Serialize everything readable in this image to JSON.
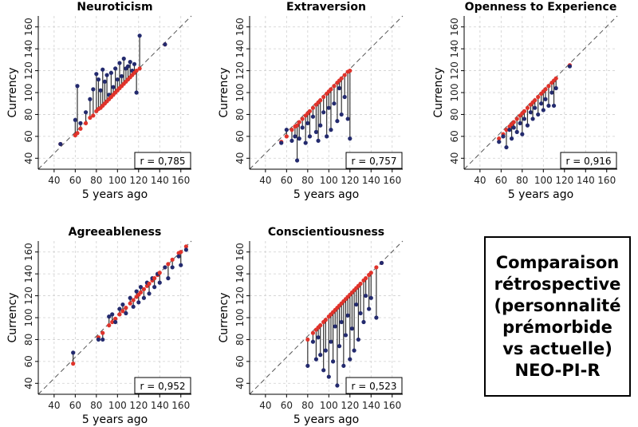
{
  "chart_data": [
    {
      "type": "scatter",
      "title": "Neuroticism",
      "xlabel": "5 years ago",
      "ylabel": "Currency",
      "xlim": [
        25,
        170
      ],
      "ylim": [
        30,
        170
      ],
      "xticks": [
        40,
        60,
        80,
        100,
        120,
        140,
        160
      ],
      "yticks": [
        40,
        60,
        80,
        100,
        120,
        140,
        160
      ],
      "grid": true,
      "annotation": "r = 0,785",
      "pairs": [
        [
          46,
          53,
          53
        ],
        [
          60,
          61,
          75
        ],
        [
          62,
          63,
          106
        ],
        [
          65,
          67,
          72
        ],
        [
          70,
          72,
          82
        ],
        [
          74,
          77,
          94
        ],
        [
          77,
          79,
          103
        ],
        [
          80,
          83,
          117
        ],
        [
          82,
          85,
          112
        ],
        [
          84,
          86,
          102
        ],
        [
          86,
          88,
          121
        ],
        [
          88,
          90,
          110
        ],
        [
          90,
          92,
          116
        ],
        [
          92,
          94,
          98
        ],
        [
          94,
          96,
          118
        ],
        [
          96,
          98,
          105
        ],
        [
          98,
          100,
          122
        ],
        [
          100,
          102,
          112
        ],
        [
          102,
          104,
          127
        ],
        [
          104,
          106,
          115
        ],
        [
          106,
          108,
          131
        ],
        [
          108,
          110,
          122
        ],
        [
          110,
          112,
          124
        ],
        [
          112,
          114,
          128
        ],
        [
          114,
          116,
          120
        ],
        [
          116,
          118,
          126
        ],
        [
          118,
          120,
          100
        ],
        [
          121,
          122,
          152
        ],
        [
          145,
          144,
          144
        ]
      ]
    },
    {
      "type": "scatter",
      "title": "Extraversion",
      "xlabel": "5 years ago",
      "ylabel": "Currency",
      "xlim": [
        25,
        170
      ],
      "ylim": [
        30,
        170
      ],
      "xticks": [
        40,
        60,
        80,
        100,
        120,
        140,
        160
      ],
      "yticks": [
        40,
        60,
        80,
        100,
        120,
        140,
        160
      ],
      "grid": true,
      "annotation": "r = 0,757",
      "pairs": [
        [
          55,
          55,
          54
        ],
        [
          60,
          60,
          66
        ],
        [
          65,
          66,
          56
        ],
        [
          68,
          69,
          60
        ],
        [
          70,
          70,
          38
        ],
        [
          72,
          73,
          58
        ],
        [
          75,
          76,
          68
        ],
        [
          78,
          79,
          54
        ],
        [
          80,
          81,
          72
        ],
        [
          82,
          83,
          60
        ],
        [
          85,
          86,
          78
        ],
        [
          88,
          89,
          64
        ],
        [
          90,
          91,
          56
        ],
        [
          92,
          93,
          70
        ],
        [
          95,
          96,
          82
        ],
        [
          98,
          99,
          60
        ],
        [
          100,
          101,
          86
        ],
        [
          102,
          103,
          66
        ],
        [
          105,
          106,
          90
        ],
        [
          108,
          109,
          74
        ],
        [
          110,
          111,
          104
        ],
        [
          112,
          113,
          80
        ],
        [
          115,
          116,
          96
        ],
        [
          118,
          119,
          76
        ],
        [
          120,
          120,
          58
        ]
      ]
    },
    {
      "type": "scatter",
      "title": "Openness to Experience",
      "xlabel": "5 years ago",
      "ylabel": "Currency",
      "xlim": [
        25,
        170
      ],
      "ylim": [
        30,
        170
      ],
      "xticks": [
        40,
        60,
        80,
        100,
        120,
        140,
        160
      ],
      "yticks": [
        40,
        60,
        80,
        100,
        120,
        140,
        160
      ],
      "grid": true,
      "annotation": "r = 0,916",
      "pairs": [
        [
          58,
          58,
          55
        ],
        [
          62,
          62,
          60
        ],
        [
          65,
          66,
          50
        ],
        [
          68,
          69,
          66
        ],
        [
          70,
          71,
          58
        ],
        [
          72,
          73,
          68
        ],
        [
          75,
          76,
          64
        ],
        [
          78,
          79,
          72
        ],
        [
          80,
          81,
          62
        ],
        [
          82,
          83,
          76
        ],
        [
          85,
          86,
          70
        ],
        [
          88,
          89,
          82
        ],
        [
          90,
          91,
          76
        ],
        [
          92,
          93,
          86
        ],
        [
          95,
          96,
          80
        ],
        [
          98,
          99,
          90
        ],
        [
          100,
          101,
          84
        ],
        [
          102,
          103,
          94
        ],
        [
          105,
          106,
          88
        ],
        [
          108,
          109,
          100
        ],
        [
          110,
          111,
          88
        ],
        [
          112,
          113,
          104
        ],
        [
          125,
          125,
          124
        ]
      ]
    },
    {
      "type": "scatter",
      "title": "Agreeableness",
      "xlabel": "5 years ago",
      "ylabel": "Currency",
      "xlim": [
        25,
        170
      ],
      "ylim": [
        30,
        170
      ],
      "xticks": [
        40,
        60,
        80,
        100,
        120,
        140,
        160
      ],
      "yticks": [
        40,
        60,
        80,
        100,
        120,
        140,
        160
      ],
      "grid": true,
      "annotation": "r = 0,952",
      "pairs": [
        [
          58,
          58,
          68
        ],
        [
          82,
          82,
          80
        ],
        [
          86,
          86,
          80
        ],
        [
          92,
          93,
          101
        ],
        [
          95,
          96,
          103
        ],
        [
          98,
          99,
          96
        ],
        [
          102,
          103,
          108
        ],
        [
          105,
          106,
          112
        ],
        [
          108,
          109,
          104
        ],
        [
          112,
          113,
          118
        ],
        [
          115,
          116,
          110
        ],
        [
          118,
          119,
          124
        ],
        [
          120,
          121,
          114
        ],
        [
          122,
          123,
          128
        ],
        [
          125,
          126,
          118
        ],
        [
          128,
          129,
          132
        ],
        [
          130,
          131,
          122
        ],
        [
          133,
          134,
          136
        ],
        [
          135,
          136,
          128
        ],
        [
          138,
          139,
          140
        ],
        [
          140,
          141,
          132
        ],
        [
          145,
          146,
          146
        ],
        [
          148,
          149,
          136
        ],
        [
          152,
          153,
          146
        ],
        [
          158,
          159,
          156
        ],
        [
          160,
          160,
          148
        ],
        [
          165,
          165,
          162
        ]
      ]
    },
    {
      "type": "scatter",
      "title": "Conscientiousness",
      "xlabel": "5 years ago",
      "ylabel": "Currency",
      "xlim": [
        25,
        170
      ],
      "ylim": [
        30,
        170
      ],
      "xticks": [
        40,
        60,
        80,
        100,
        120,
        140,
        160
      ],
      "yticks": [
        40,
        60,
        80,
        100,
        120,
        140,
        160
      ],
      "grid": true,
      "annotation": "r = 0,523",
      "pairs": [
        [
          80,
          80,
          56
        ],
        [
          85,
          86,
          78
        ],
        [
          88,
          89,
          62
        ],
        [
          90,
          91,
          82
        ],
        [
          92,
          93,
          66
        ],
        [
          95,
          96,
          52
        ],
        [
          97,
          98,
          70
        ],
        [
          100,
          101,
          46
        ],
        [
          102,
          103,
          78
        ],
        [
          104,
          105,
          60
        ],
        [
          106,
          107,
          92
        ],
        [
          108,
          109,
          38
        ],
        [
          110,
          111,
          74
        ],
        [
          112,
          113,
          96
        ],
        [
          114,
          115,
          56
        ],
        [
          116,
          117,
          84
        ],
        [
          118,
          119,
          102
        ],
        [
          120,
          121,
          62
        ],
        [
          122,
          123,
          90
        ],
        [
          124,
          125,
          70
        ],
        [
          126,
          127,
          112
        ],
        [
          128,
          129,
          80
        ],
        [
          130,
          131,
          104
        ],
        [
          133,
          134,
          96
        ],
        [
          135,
          136,
          120
        ],
        [
          138,
          139,
          108
        ],
        [
          140,
          141,
          118
        ],
        [
          145,
          146,
          100
        ],
        [
          150,
          150,
          150
        ]
      ]
    }
  ],
  "caption": {
    "lines": [
      "Comparaison",
      "rétrospective",
      "(personnalité",
      "prémorbide",
      "vs actuelle)",
      "NEO-PI-R"
    ]
  }
}
